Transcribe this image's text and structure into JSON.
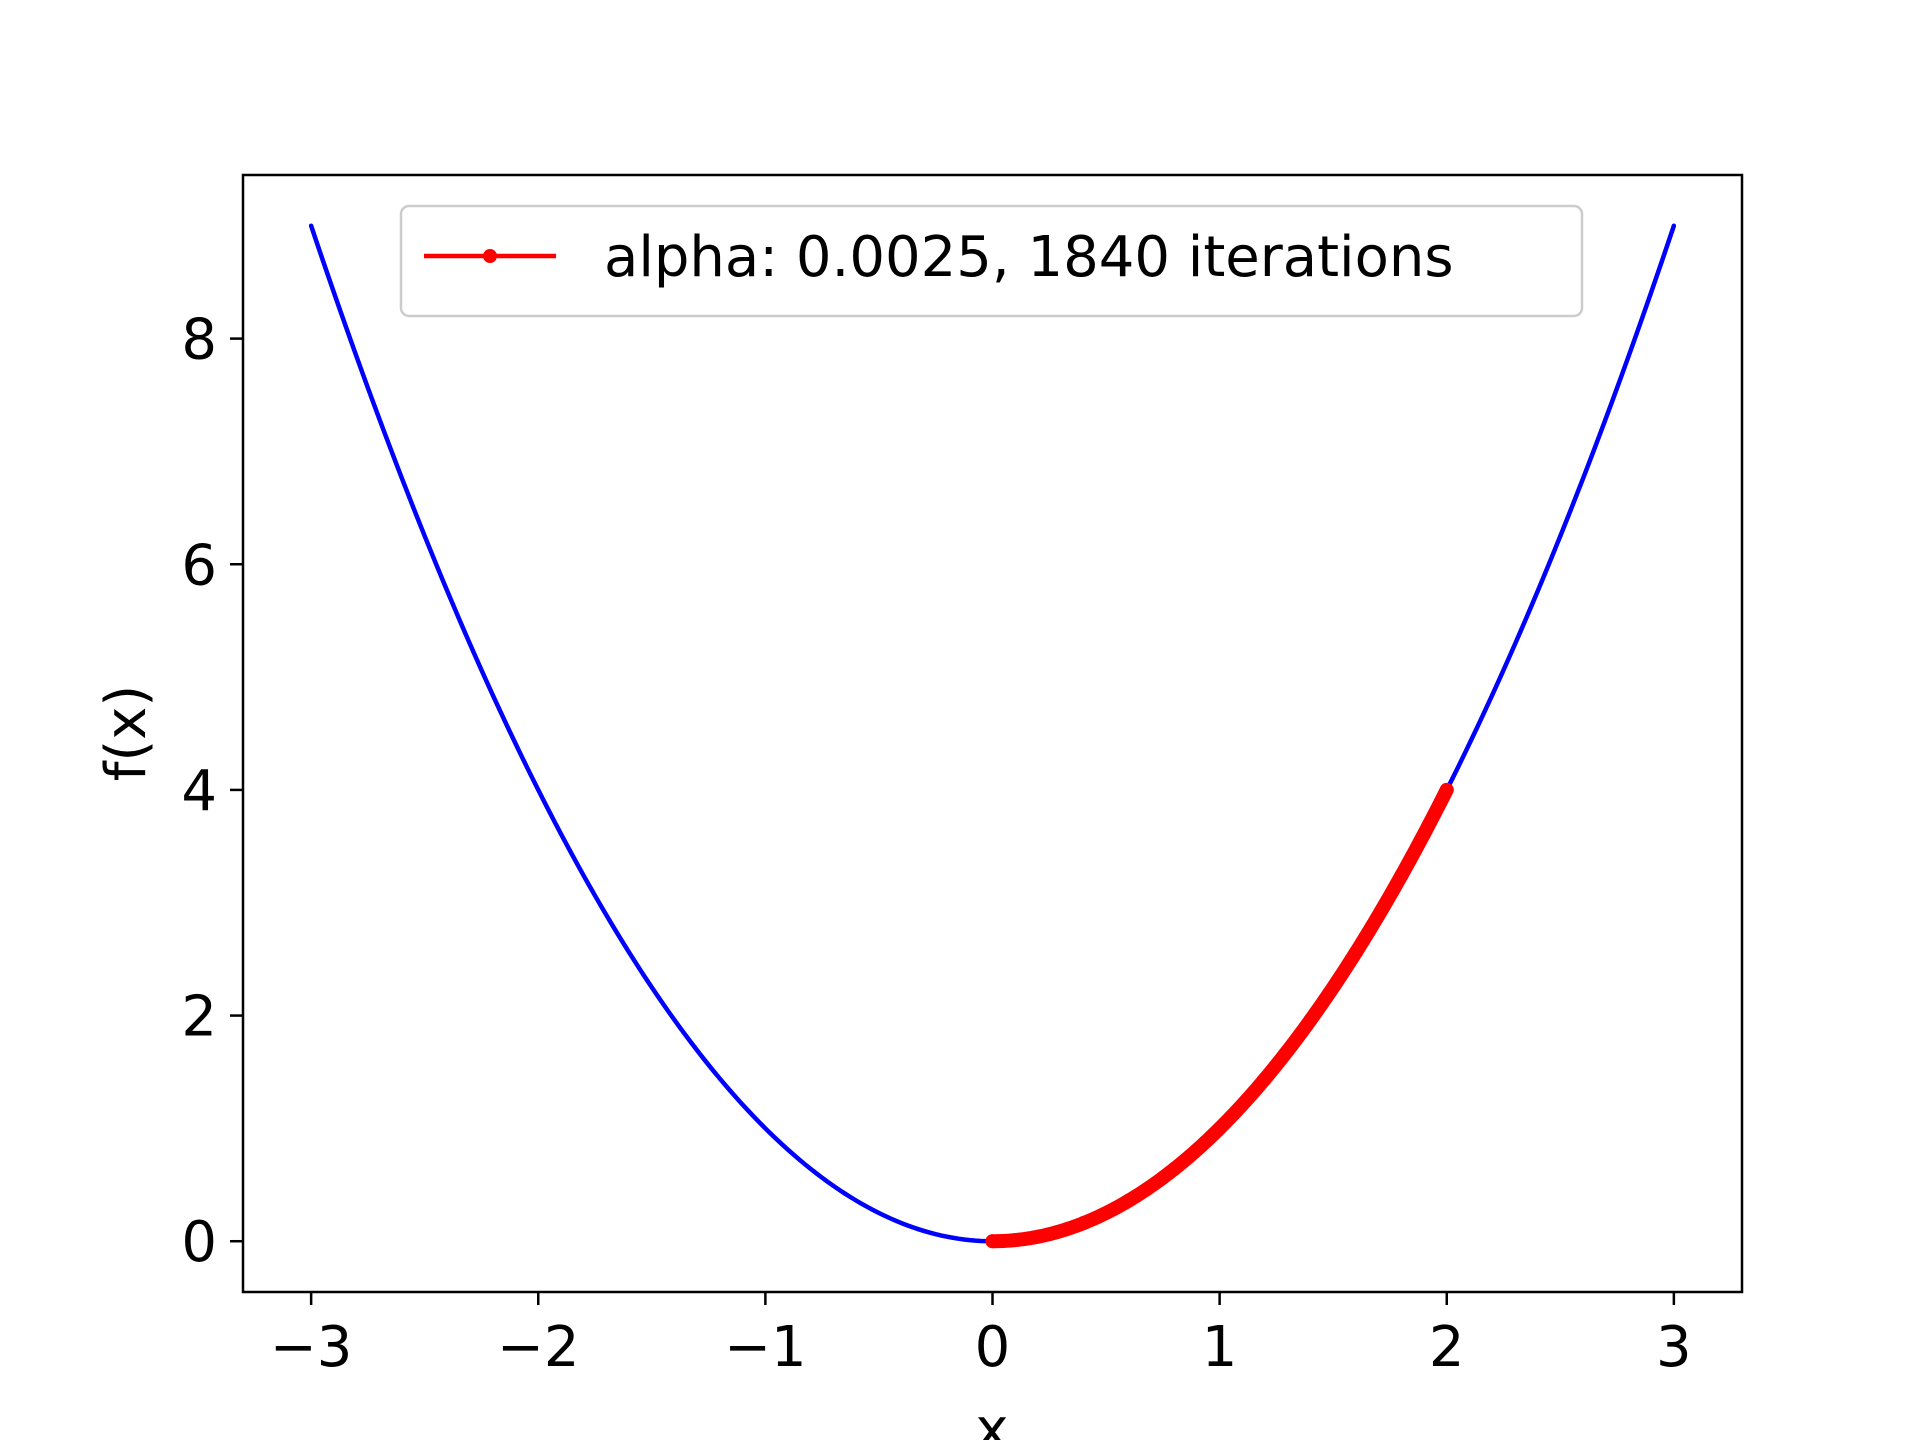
{
  "chart_data": {
    "type": "line",
    "title": "",
    "xlabel": "x",
    "ylabel": "f(x)",
    "xlim": [
      -3.3,
      3.3
    ],
    "ylim": [
      -0.45,
      9.45
    ],
    "xticks": [
      {
        "value": -3,
        "label": "−3"
      },
      {
        "value": -2,
        "label": "−2"
      },
      {
        "value": -1,
        "label": "−1"
      },
      {
        "value": 0,
        "label": "0"
      },
      {
        "value": 1,
        "label": "1"
      },
      {
        "value": 2,
        "label": "2"
      },
      {
        "value": 3,
        "label": "3"
      }
    ],
    "yticks": [
      {
        "value": 0,
        "label": "0"
      },
      {
        "value": 2,
        "label": "2"
      },
      {
        "value": 4,
        "label": "4"
      },
      {
        "value": 6,
        "label": "6"
      },
      {
        "value": 8,
        "label": "8"
      }
    ],
    "grid": false,
    "legend_position": "top-center",
    "series": [
      {
        "color": "#0000ff",
        "marker": "none",
        "x": [
          -3.0,
          -2.5,
          -2.0,
          -1.5,
          -1.0,
          -0.5,
          0.0,
          0.5,
          1.0,
          1.5,
          2.0,
          2.5,
          3.0
        ],
        "y": [
          9.0,
          6.25,
          4.0,
          2.25,
          1.0,
          0.25,
          0.0,
          0.25,
          1.0,
          2.25,
          4.0,
          6.25,
          9.0
        ]
      },
      {
        "name": "alpha: 0.0025, 1840 iterations",
        "color": "#ff0000",
        "marker": "dot",
        "x": [
          2.0,
          1.8,
          1.6,
          1.4,
          1.2,
          1.0,
          0.8,
          0.6,
          0.4,
          0.2,
          0.1,
          0.0
        ],
        "y": [
          4.0,
          3.24,
          2.56,
          1.96,
          1.44,
          1.0,
          0.64,
          0.36,
          0.16,
          0.04,
          0.01,
          0.0
        ]
      }
    ]
  }
}
